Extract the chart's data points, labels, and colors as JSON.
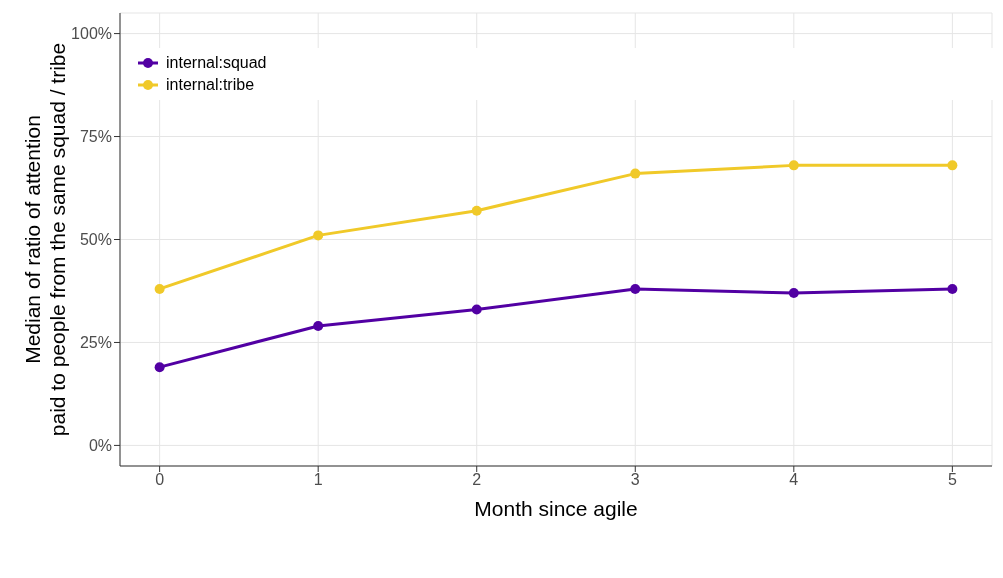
{
  "chart_data": {
    "type": "line",
    "xlabel": "Month since agile",
    "ylabel": "Median of ratio of attention\npaid to people from the same squad / tribe",
    "x": [
      0,
      1,
      2,
      3,
      4,
      5
    ],
    "series": [
      {
        "name": "internal:squad",
        "color": "#5200a3",
        "values": [
          19,
          29,
          33,
          38,
          37,
          38
        ]
      },
      {
        "name": "internal:tribe",
        "color": "#f0c929",
        "values": [
          38,
          51,
          57,
          66,
          68,
          68
        ]
      }
    ],
    "xlim": [
      -0.25,
      5.25
    ],
    "xticks": [
      0,
      1,
      2,
      3,
      4,
      5
    ],
    "ylim": [
      -5,
      105
    ],
    "yticks": [
      {
        "value": 0,
        "label": "0%"
      },
      {
        "value": 25,
        "label": "25%"
      },
      {
        "value": 50,
        "label": "50%"
      },
      {
        "value": 75,
        "label": "75%"
      },
      {
        "value": 100,
        "label": "100%"
      }
    ],
    "grid": true,
    "legend": "top left",
    "marker": "circle",
    "line_style": "solid"
  }
}
